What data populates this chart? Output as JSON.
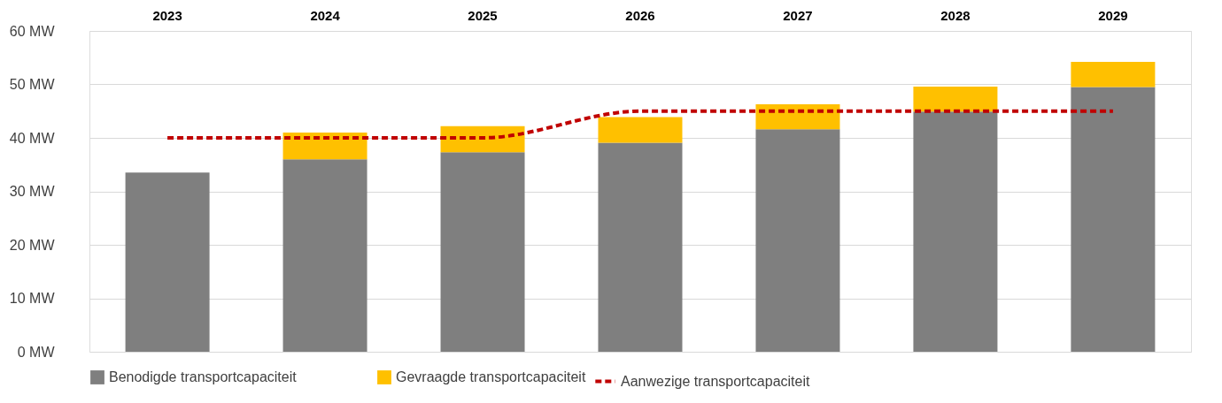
{
  "chart_data": {
    "type": "bar",
    "stacked": true,
    "categories": [
      "2023",
      "2024",
      "2025",
      "2026",
      "2027",
      "2028",
      "2029"
    ],
    "series": [
      {
        "name": "Benodigde transportcapaciteit",
        "color": "#7f7f7f",
        "values": [
          33.5,
          36.0,
          37.3,
          39.1,
          41.6,
          44.9,
          49.5
        ]
      },
      {
        "name": "Gevraagde transportcapaciteit",
        "color": "#ffc000",
        "values": [
          null,
          5.0,
          4.9,
          4.8,
          4.7,
          4.7,
          4.7
        ]
      },
      {
        "name": "Aanwezige transportcapaciteit",
        "color": "#c00000",
        "type": "line",
        "line_style": "dashed",
        "marker": "none",
        "values": [
          40,
          40,
          40,
          45,
          45,
          45,
          45
        ]
      }
    ],
    "ylim": [
      0,
      60
    ],
    "yticks": [
      {
        "value": 0,
        "label": "0 MW"
      },
      {
        "value": 10,
        "label": "10 MW"
      },
      {
        "value": 20,
        "label": "20 MW"
      },
      {
        "value": 30,
        "label": "30 MW"
      },
      {
        "value": 40,
        "label": "40 MW"
      },
      {
        "value": 50,
        "label": "50 MW"
      },
      {
        "value": 60,
        "label": "60 MW"
      }
    ],
    "grid": "y",
    "legend": "bottom"
  }
}
